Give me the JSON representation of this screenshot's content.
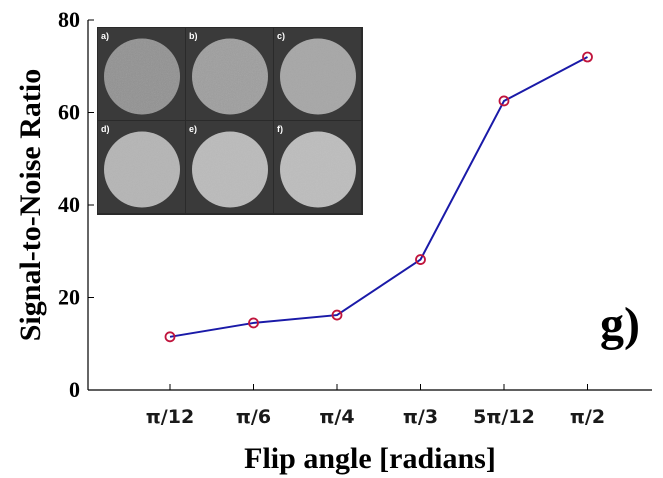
{
  "panel_label": "g)",
  "chart_data": {
    "type": "line",
    "categories": [
      "π/12",
      "π/6",
      "π/4",
      "π/3",
      "5π/12",
      "π/2"
    ],
    "series": [
      {
        "values": [
          11.5,
          14.5,
          16.2,
          28.2,
          62.5,
          72.0
        ]
      }
    ],
    "xlabel": "Flip angle [radians]",
    "ylabel": "Signal-to-Noise Ratio",
    "ylim": [
      0,
      80
    ],
    "yticks": [
      0,
      20,
      40,
      60,
      80
    ],
    "line_color": "#1a1aa8",
    "marker_color": "#c0143c",
    "marker": "open-circle",
    "grid": false
  },
  "inset": {
    "panels": [
      {
        "label": "a)",
        "brightness": "#8f8f8f"
      },
      {
        "label": "b)",
        "brightness": "#9c9c9c"
      },
      {
        "label": "c)",
        "brightness": "#a6a6a6"
      },
      {
        "label": "d)",
        "brightness": "#b5b5b5"
      },
      {
        "label": "e)",
        "brightness": "#bbbbbb"
      },
      {
        "label": "f)",
        "brightness": "#bdbdbd"
      }
    ]
  }
}
